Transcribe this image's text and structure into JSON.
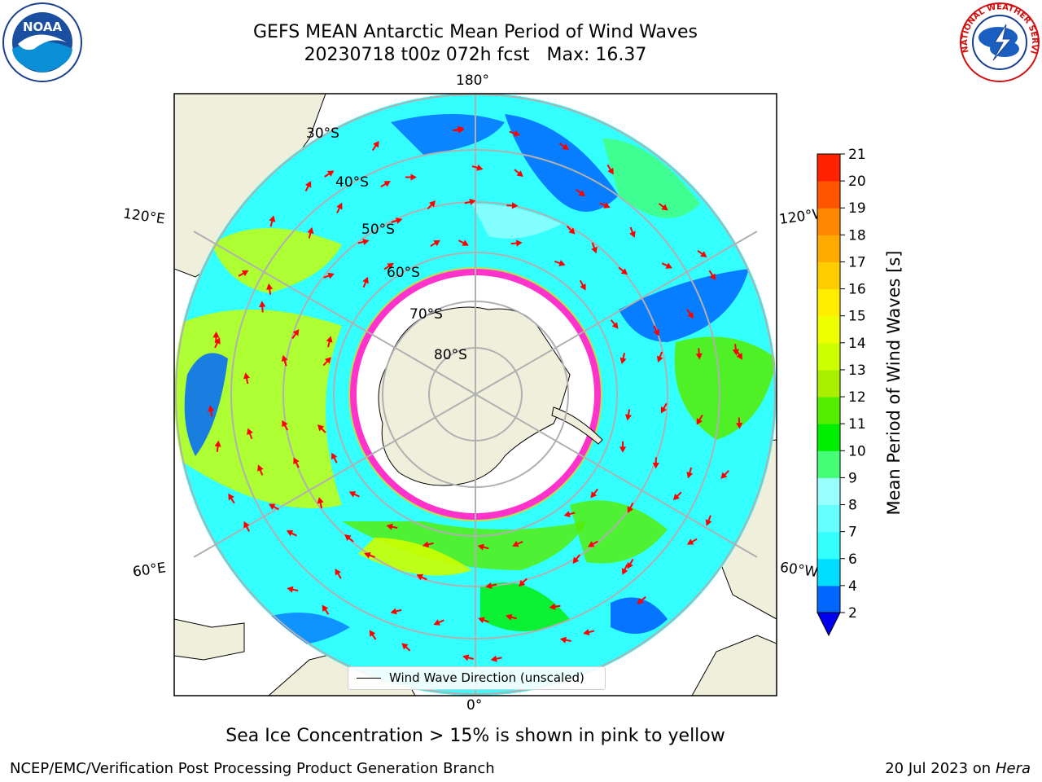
{
  "title": {
    "line1": "GEFS MEAN Antarctic Mean Period of Wind Waves",
    "date": "20230718 t00z 072h fcst",
    "max_label": "Max: 16.37"
  },
  "logos": {
    "noaa": "NOAA",
    "nws": "NATIONAL WEATHER SERVICE"
  },
  "map": {
    "longitude_labels": {
      "top": "180°",
      "bottom": "0°",
      "left_upper": "120°E",
      "left_lower": "60°E",
      "right_upper": "120°W",
      "right_lower": "60°W"
    },
    "latitude_labels": [
      "30°S",
      "40°S",
      "50°S",
      "60°S",
      "70°S",
      "80°S"
    ],
    "colors": {
      "land": "#efefdc",
      "grid": "#b0b0b0",
      "ice": "#ff33cc",
      "arrow": "#ff0000"
    }
  },
  "legend": {
    "label": "Wind Wave Direction (unscaled)"
  },
  "colorbar": {
    "label": "Mean Period of Wind Waves [s]",
    "ticks": [
      "2",
      "4",
      "6",
      "7",
      "8",
      "9",
      "10",
      "11",
      "12",
      "13",
      "14",
      "15",
      "16",
      "17",
      "18",
      "19",
      "20",
      "21"
    ],
    "colors": [
      "#0066ff",
      "#00ddff",
      "#33ffff",
      "#66ffff",
      "#99ffff",
      "#44ff77",
      "#00ee00",
      "#55ee00",
      "#aaee00",
      "#ccff00",
      "#eeff00",
      "#ffee00",
      "#ffcc00",
      "#ffaa00",
      "#ff8800",
      "#ff5500",
      "#ff2200"
    ],
    "under_color": "#0000ee"
  },
  "footer": {
    "sea_ice_note": "Sea Ice Concentration > 15% is shown in pink to yellow",
    "credit": "NCEP/EMC/Verification Post Processing Product Generation Branch",
    "date": "20 Jul 2023 on ",
    "host": "Hera"
  }
}
